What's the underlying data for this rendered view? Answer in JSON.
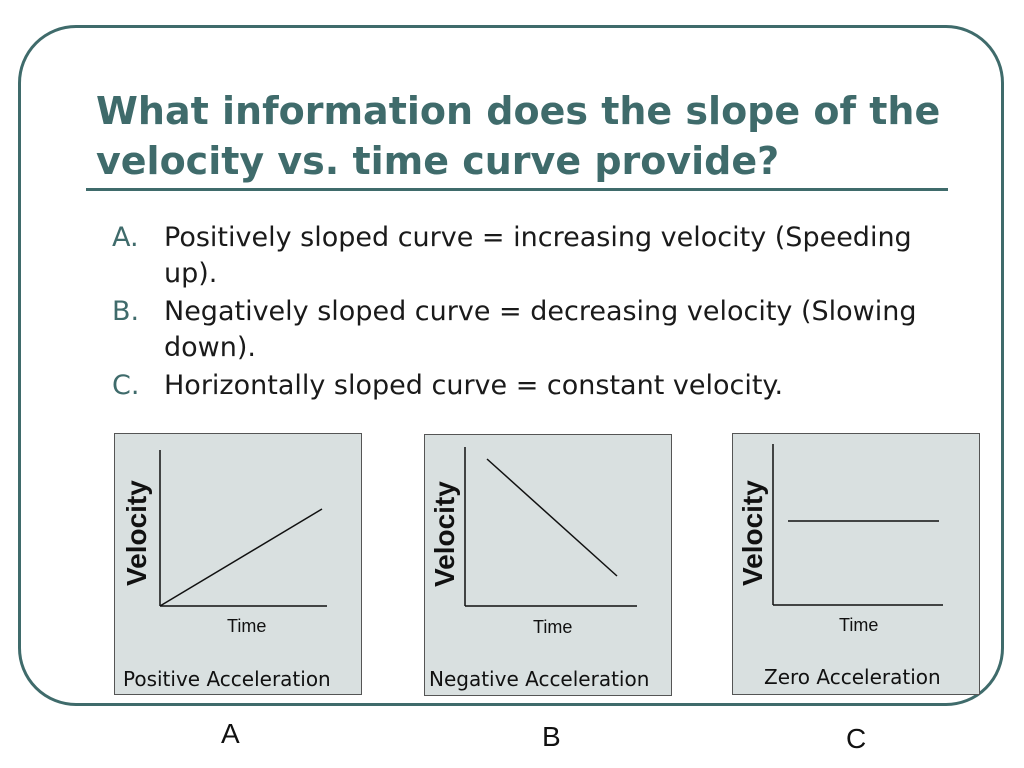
{
  "slide": {
    "title": "What information does the slope of the velocity vs. time curve provide?",
    "bullets": [
      {
        "marker": "A.",
        "text": "Positively sloped curve = increasing velocity (Speeding up)."
      },
      {
        "marker": "B.",
        "text": "Negatively sloped curve = decreasing velocity (Slowing down)."
      },
      {
        "marker": "C.",
        "text": "Horizontally sloped curve = constant velocity."
      }
    ]
  },
  "graphs": [
    {
      "ylabel": "Velocity",
      "xlabel": "Time",
      "caption": "Positive Acceleration",
      "letter": "A",
      "trend": "increasing"
    },
    {
      "ylabel": "Velocity",
      "xlabel": "Time",
      "caption": "Negative Acceleration",
      "letter": "B",
      "trend": "decreasing"
    },
    {
      "ylabel": "Velocity",
      "xlabel": "Time",
      "caption": "Zero Acceleration",
      "letter": "C",
      "trend": "constant"
    }
  ],
  "colors": {
    "accent": "#3f6b6b",
    "panel_bg": "#d9e0e0"
  }
}
